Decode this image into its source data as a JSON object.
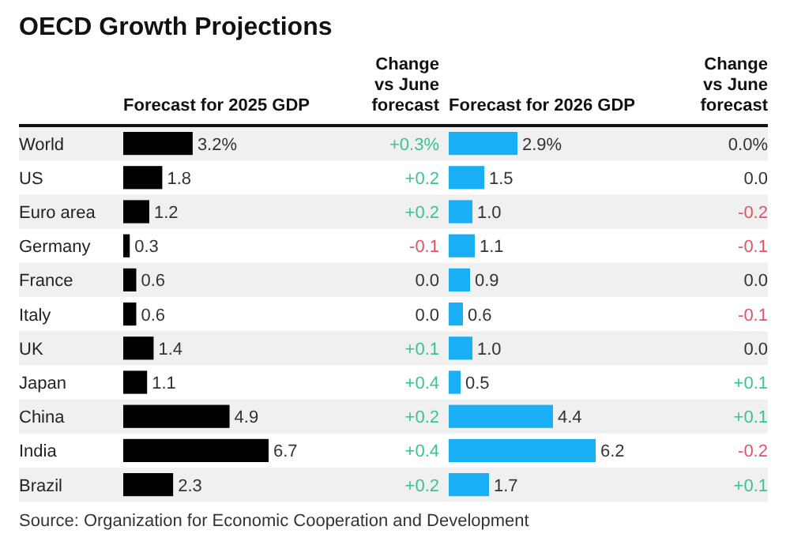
{
  "chart_data": [
    {
      "type": "bar",
      "orientation": "horizontal",
      "title": "OECD Growth Projections",
      "subtitle": "Forecast for 2025 GDP",
      "categories": [
        "World",
        "US",
        "Euro area",
        "Germany",
        "France",
        "Italy",
        "UK",
        "Japan",
        "China",
        "India",
        "Brazil"
      ],
      "values": [
        3.2,
        1.8,
        1.2,
        0.3,
        0.6,
        0.6,
        1.4,
        1.1,
        4.9,
        6.7,
        2.3
      ],
      "value_labels": [
        "3.2%",
        "1.8",
        "1.2",
        "0.3",
        "0.6",
        "0.6",
        "1.4",
        "1.1",
        "4.9",
        "6.7",
        "2.3"
      ],
      "color": "#000000",
      "annotations": [
        "Source: Organization for Economic Cooperation and Development"
      ]
    },
    {
      "type": "other",
      "title": "Change vs June forecast",
      "values": [
        0.3,
        0.2,
        0.2,
        -0.1,
        0.0,
        0.0,
        0.1,
        0.4,
        0.2,
        0.4,
        0.2
      ],
      "value_labels": [
        "+0.3%",
        "+0.2",
        "+0.2",
        "-0.1",
        "0.0",
        "0.0",
        "+0.1",
        "+0.4",
        "+0.2",
        "+0.4",
        "+0.2"
      ],
      "colors": [
        "#3cc48f",
        "#3cc48f",
        "#3cc48f",
        "#e05565",
        "#333333",
        "#333333",
        "#3cc48f",
        "#3cc48f",
        "#3cc48f",
        "#3cc48f",
        "#3cc48f"
      ]
    },
    {
      "type": "bar",
      "orientation": "horizontal",
      "title": "Forecast for 2026 GDP",
      "categories": [
        null,
        null,
        null,
        null,
        null,
        null,
        null,
        null,
        null,
        null,
        null
      ],
      "values": [
        2.9,
        1.5,
        1.0,
        1.1,
        0.9,
        0.6,
        1.0,
        0.5,
        4.4,
        6.2,
        1.7
      ],
      "value_labels": [
        "2.9%",
        "1.5",
        "1.0",
        "1.1",
        "0.9",
        "0.6",
        "1.0",
        "0.5",
        "4.4",
        "6.2",
        "1.7"
      ],
      "color": "#1aaef5"
    },
    {
      "type": "other",
      "title": "Change vs June forecast",
      "values": [
        0.0,
        0.0,
        -0.2,
        -0.1,
        0.0,
        -0.1,
        0.0,
        0.1,
        0.1,
        -0.2,
        0.1
      ],
      "value_labels": [
        "0.0%",
        "0.0",
        "-0.2",
        "-0.1",
        "0.0",
        "-0.1",
        "0.0",
        "+0.1",
        "+0.1",
        "-0.2",
        "+0.1"
      ],
      "colors": [
        "#333333",
        "#333333",
        "#e05565",
        "#e05565",
        "#333333",
        "#e05565",
        "#333333",
        "#3cc48f",
        "#3cc48f",
        "#e05565",
        "#3cc48f"
      ]
    }
  ]
}
